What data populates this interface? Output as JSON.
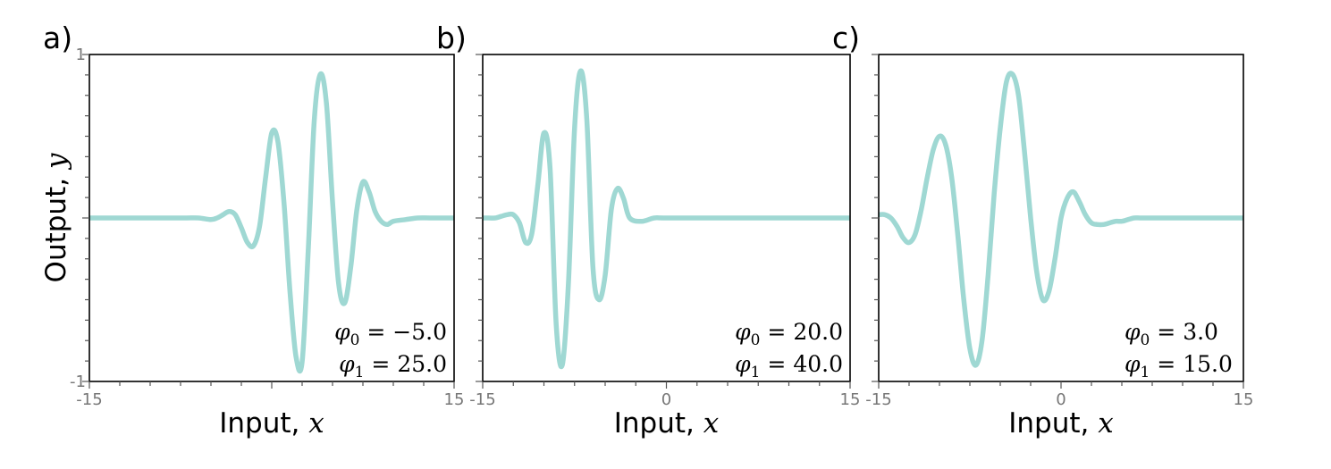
{
  "chart_data": [
    {
      "type": "line",
      "panel_label": "a)",
      "xlabel_text": "Input, ",
      "xlabel_var": "x",
      "ylabel_text": "Output, ",
      "ylabel_var": "y",
      "xlim": [
        -15,
        15
      ],
      "ylim": [
        -1,
        1
      ],
      "x_tick_labels": [
        "-15",
        "15"
      ],
      "y_tick_labels": [
        "1",
        "-1"
      ],
      "params": [
        {
          "symbol": "φ",
          "sub": "0",
          "value": "−5.0"
        },
        {
          "symbol": "φ",
          "sub": "1",
          "value": "25.0"
        }
      ],
      "series": [
        {
          "color": "#9fd8d3",
          "x": [
            -15,
            -14,
            -13,
            -12,
            -11,
            -10,
            -9,
            -8,
            -7,
            -6,
            -5,
            -4.5,
            -4,
            -3.5,
            -3,
            -2.5,
            -2,
            -1.5,
            -1,
            -0.5,
            0,
            0.5,
            1,
            1.5,
            2,
            2.5,
            3,
            3.5,
            4,
            4.5,
            5,
            5.5,
            6,
            6.5,
            7,
            7.5,
            8,
            8.5,
            9,
            9.5,
            10,
            11,
            12,
            13,
            14,
            15
          ],
          "y": [
            0,
            0,
            0,
            0,
            0,
            0,
            0,
            0,
            0,
            0,
            -0.01,
            0,
            0.02,
            0.04,
            0.02,
            -0.06,
            -0.15,
            -0.17,
            -0.05,
            0.25,
            0.52,
            0.47,
            0.1,
            -0.45,
            -0.85,
            -0.88,
            -0.2,
            0.6,
            0.88,
            0.7,
            0.1,
            -0.4,
            -0.52,
            -0.3,
            0.05,
            0.22,
            0.16,
            0.04,
            -0.02,
            -0.04,
            -0.02,
            -0.01,
            0,
            0,
            0,
            0
          ]
        }
      ]
    },
    {
      "type": "line",
      "panel_label": "b)",
      "xlabel_text": "Input, ",
      "xlabel_var": "x",
      "xlim": [
        -15,
        15
      ],
      "ylim": [
        -1,
        1
      ],
      "x_tick_labels": [
        "-15",
        "0",
        "15"
      ],
      "params": [
        {
          "symbol": "φ",
          "sub": "0",
          "value": "20.0"
        },
        {
          "symbol": "φ",
          "sub": "1",
          "value": "40.0"
        }
      ],
      "series": [
        {
          "color": "#9fd8d3",
          "x": [
            -15,
            -14.5,
            -14,
            -13.5,
            -13,
            -12.5,
            -12,
            -11.5,
            -11,
            -10.5,
            -10,
            -9.5,
            -9,
            -8.5,
            -8,
            -7.5,
            -7,
            -6.5,
            -6,
            -5.5,
            -5,
            -4.5,
            -4,
            -3.5,
            -3,
            -2,
            -1,
            0,
            5,
            10,
            15
          ],
          "y": [
            0,
            0,
            0,
            0.01,
            0.02,
            0.02,
            -0.03,
            -0.15,
            -0.1,
            0.2,
            0.52,
            0.3,
            -0.65,
            -0.9,
            -0.4,
            0.55,
            0.9,
            0.6,
            -0.3,
            -0.5,
            -0.35,
            0.05,
            0.18,
            0.12,
            0,
            -0.02,
            0,
            0,
            0,
            0,
            0
          ]
        }
      ]
    },
    {
      "type": "line",
      "panel_label": "c)",
      "xlabel_text": "Input, ",
      "xlabel_var": "x",
      "xlim": [
        -15,
        15
      ],
      "ylim": [
        -1,
        1
      ],
      "x_tick_labels": [
        "-15",
        "0",
        "15"
      ],
      "params": [
        {
          "symbol": "φ",
          "sub": "0",
          "value": "3.0"
        },
        {
          "symbol": "φ",
          "sub": "1",
          "value": "15.0"
        }
      ],
      "series": [
        {
          "color": "#9fd8d3",
          "x": [
            -15,
            -14.5,
            -14,
            -13.5,
            -13,
            -12.5,
            -12,
            -11.5,
            -11,
            -10.5,
            -10,
            -9.5,
            -9,
            -8.5,
            -8,
            -7.5,
            -7,
            -6.5,
            -6,
            -5.5,
            -5,
            -4.5,
            -4,
            -3.5,
            -3,
            -2.5,
            -2,
            -1.5,
            -1,
            -0.5,
            0,
            0.5,
            1,
            1.5,
            2,
            2.5,
            3,
            3.5,
            4,
            4.5,
            5,
            5.5,
            6,
            6.5,
            7,
            7.5,
            8,
            8.5,
            9,
            10,
            11,
            12,
            13,
            14,
            15
          ],
          "y": [
            0.02,
            0.02,
            0,
            -0.05,
            -0.12,
            -0.15,
            -0.1,
            0.05,
            0.25,
            0.42,
            0.5,
            0.45,
            0.25,
            -0.1,
            -0.5,
            -0.8,
            -0.9,
            -0.75,
            -0.35,
            0.15,
            0.55,
            0.83,
            0.88,
            0.75,
            0.4,
            0,
            -0.33,
            -0.5,
            -0.45,
            -0.25,
            0,
            0.12,
            0.16,
            0.1,
            0.02,
            -0.03,
            -0.04,
            -0.04,
            -0.03,
            -0.02,
            -0.02,
            -0.01,
            0,
            0,
            0,
            0,
            0,
            0,
            0,
            0,
            0,
            0,
            0,
            0,
            0
          ]
        }
      ]
    }
  ]
}
